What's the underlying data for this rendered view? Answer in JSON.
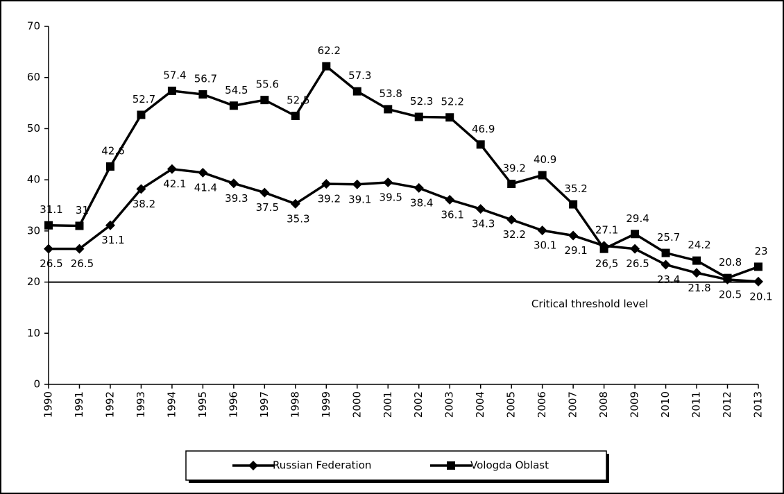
{
  "chart_data": {
    "type": "line",
    "categories": [
      "1990",
      "1991",
      "1992",
      "1993",
      "1994",
      "1995",
      "1996",
      "1997",
      "1998",
      "1999",
      "2000",
      "2001",
      "2002",
      "2003",
      "2004",
      "2005",
      "2006",
      "2007",
      "2008",
      "2009",
      "2010",
      "2011",
      "2012",
      "2013"
    ],
    "series": [
      {
        "name": "Russian Federation",
        "color": "#000000",
        "marker": "diamond",
        "values": [
          26.5,
          26.5,
          31.1,
          38.2,
          42.1,
          41.4,
          39.3,
          37.5,
          35.3,
          39.2,
          39.1,
          39.5,
          38.4,
          36.1,
          34.3,
          32.2,
          30.1,
          29.1,
          27.1,
          26.5,
          23.4,
          21.8,
          20.5,
          20.1
        ]
      },
      {
        "name": "Vologda Oblast",
        "color": "#000000",
        "marker": "square",
        "values": [
          31.1,
          31,
          42.6,
          52.7,
          57.4,
          56.7,
          54.5,
          55.6,
          52.5,
          62.2,
          57.3,
          53.8,
          52.3,
          52.2,
          46.9,
          39.2,
          40.9,
          35.2,
          26.5,
          29.4,
          25.7,
          24.2,
          20.8,
          23
        ],
        "value_labels": [
          "31.1",
          "31",
          "42.6",
          "52.7",
          "57.4",
          "56.7",
          "54.5",
          "55.6",
          "52.5",
          "62.2",
          "57.3",
          "53.8",
          "52.3",
          "52.2",
          "46.9",
          "39.2",
          "40.9",
          "35.2",
          "26,5",
          "29.4",
          "25.7",
          "24.2",
          "20.8",
          "23"
        ]
      }
    ],
    "threshold": {
      "value": 20,
      "label": "Critical threshold level"
    },
    "ylim": [
      0,
      70
    ],
    "yticks": [
      0,
      10,
      20,
      30,
      40,
      50,
      60,
      70
    ],
    "legend": "bottom"
  }
}
